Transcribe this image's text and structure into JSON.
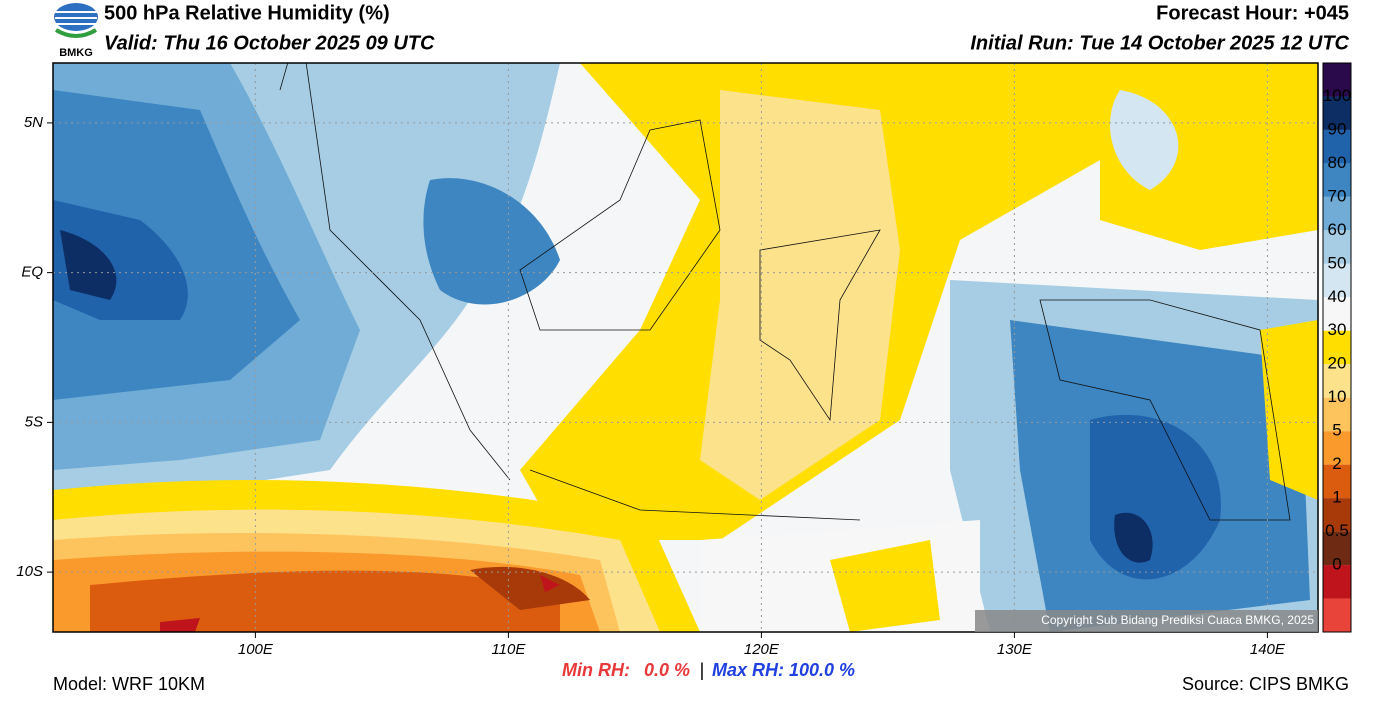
{
  "header": {
    "title": "500 hPa Relative Humidity (%)",
    "valid": "Valid: Thu 16 October 2025 09 UTC",
    "forecast_hour": "Forecast Hour: +045",
    "initial_run": "Initial Run: Tue 14 October 2025 12 UTC",
    "logo_text": "BMKG"
  },
  "map": {
    "lonlim": [
      92,
      142
    ],
    "latlim": [
      7,
      -12
    ],
    "lon_ticks": [
      {
        "value": 100,
        "label": "100E"
      },
      {
        "value": 110,
        "label": "110E"
      },
      {
        "value": 120,
        "label": "120E"
      },
      {
        "value": 130,
        "label": "130E"
      },
      {
        "value": 140,
        "label": "140E"
      }
    ],
    "lat_ticks": [
      {
        "value": 5,
        "label": "5N"
      },
      {
        "value": 0,
        "label": "EQ"
      },
      {
        "value": -5,
        "label": "5S"
      },
      {
        "value": -10,
        "label": "10S"
      }
    ],
    "grid": true,
    "copyright": "Copyright Sub Bidang Prediksi Cuaca BMKG, 2025"
  },
  "colorbar": {
    "colors": [
      "#2a0a4a",
      "#0c2e64",
      "#2163ab",
      "#3d86c1",
      "#70acd6",
      "#a6cde3",
      "#d4e6f1",
      "#f7f7f7",
      "#ffde00",
      "#fde28c",
      "#fdc45e",
      "#fb9a2c",
      "#db5c0e",
      "#a83a0a",
      "#6e2a12",
      "#c0141c",
      "#e8443a"
    ],
    "labels": [
      "100",
      "90",
      "80",
      "70",
      "60",
      "50",
      "40",
      "30",
      "20",
      "10",
      "5",
      "2",
      "1",
      "0.5",
      "0"
    ]
  },
  "footer": {
    "min_label": "Min RH:",
    "min_value": "0.0 %",
    "separator": "|",
    "max_label": "Max RH:",
    "max_value": "100.0 %",
    "model": "Model: WRF 10KM",
    "source": "Source: CIPS BMKG"
  }
}
